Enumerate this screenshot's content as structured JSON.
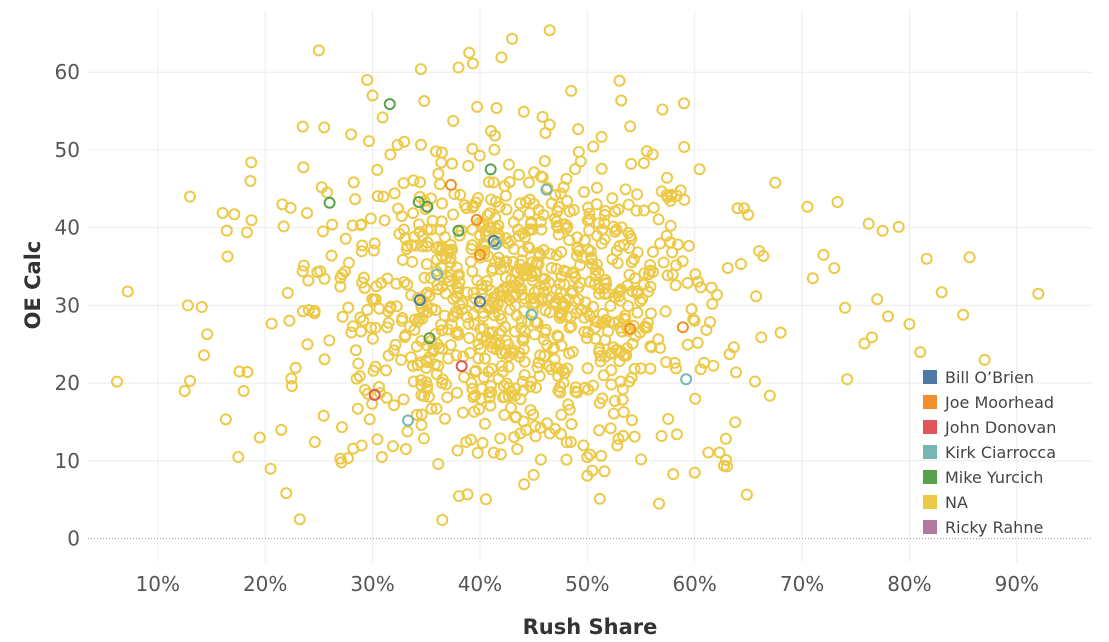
{
  "chart_data": {
    "type": "scatter",
    "title": "",
    "xlabel": "Rush Share",
    "ylabel": "OE Calc",
    "xlim": [
      0.035,
      0.97
    ],
    "ylim": [
      -3,
      68
    ],
    "xticks": [
      0.1,
      0.2,
      0.3,
      0.4,
      0.5,
      0.6,
      0.7,
      0.8,
      0.9
    ],
    "xtick_labels": [
      "10%",
      "20%",
      "30%",
      "40%",
      "50%",
      "60%",
      "70%",
      "80%",
      "90%"
    ],
    "yticks": [
      0,
      10,
      20,
      30,
      40,
      50,
      60
    ],
    "ytick_labels": [
      "0",
      "10",
      "20",
      "30",
      "40",
      "50",
      "60"
    ],
    "grid": true,
    "legend_position": "bottom-right",
    "marker": "hollow-circle",
    "series": [
      {
        "name": "Bill O’Brien",
        "color": "#4e79a7",
        "x": [
          0.344,
          0.4,
          0.413
        ],
        "y": [
          30.7,
          30.5,
          38.3
        ]
      },
      {
        "name": "Joe Moorhead",
        "color": "#f28e2b",
        "x": [
          0.373,
          0.397,
          0.4,
          0.54,
          0.589
        ],
        "y": [
          45.5,
          41.0,
          36.5,
          27.0,
          27.2
        ]
      },
      {
        "name": "John Donovan",
        "color": "#e15759",
        "x": [
          0.302,
          0.383
        ],
        "y": [
          18.5,
          22.2
        ]
      },
      {
        "name": "Kirk Ciarrocca",
        "color": "#76b7b2",
        "x": [
          0.462,
          0.415,
          0.36,
          0.448,
          0.333,
          0.592
        ],
        "y": [
          44.9,
          37.9,
          34.0,
          28.8,
          15.2,
          20.5
        ]
      },
      {
        "name": "Mike Yurcich",
        "color": "#59a14f",
        "x": [
          0.316,
          0.26,
          0.343,
          0.351,
          0.41,
          0.38,
          0.353
        ],
        "y": [
          55.9,
          43.2,
          43.3,
          42.7,
          47.5,
          39.6,
          25.8
        ]
      },
      {
        "name": "NA",
        "color": "#edc948",
        "n": 1050,
        "x": [
          0.062,
          0.072,
          0.13,
          0.128,
          0.141,
          0.146,
          0.143,
          0.125,
          0.13,
          0.165,
          0.175,
          0.183,
          0.187,
          0.216,
          0.25,
          0.255,
          0.28,
          0.295,
          0.3,
          0.31,
          0.345,
          0.38,
          0.39,
          0.42,
          0.43,
          0.465,
          0.485,
          0.53,
          0.57,
          0.59,
          0.675,
          0.705,
          0.733,
          0.762,
          0.775,
          0.79,
          0.816,
          0.856,
          0.92,
          0.85,
          0.87,
          0.742,
          0.765,
          0.646,
          0.662,
          0.758,
          0.67,
          0.235,
          0.205,
          0.215,
          0.195,
          0.18,
          0.176,
          0.27,
          0.6,
          0.63,
          0.365,
          0.45,
          0.5,
          0.55,
          0.58,
          0.68,
          0.71,
          0.72,
          0.73,
          0.74,
          0.77,
          0.78,
          0.8,
          0.81,
          0.83,
          0.64,
          0.66
        ],
        "y": [
          20.2,
          31.8,
          44.0,
          30.0,
          29.8,
          26.3,
          23.6,
          19.0,
          20.3,
          36.3,
          10.5,
          39.4,
          48.4,
          43.0,
          62.8,
          52.9,
          52.0,
          59.0,
          57.0,
          44.0,
          60.4,
          60.6,
          62.5,
          61.9,
          64.3,
          65.4,
          57.6,
          58.9,
          55.2,
          56.0,
          45.8,
          42.7,
          43.3,
          40.5,
          39.6,
          40.1,
          36.0,
          36.2,
          31.5,
          28.8,
          23.0,
          20.5,
          25.9,
          42.5,
          25.9,
          25.1,
          18.4,
          53.0,
          9.0,
          14.0,
          13.0,
          19.0,
          21.5,
          10.3,
          8.5,
          9.3,
          2.4,
          8.2,
          8.1,
          10.2,
          8.3,
          26.5,
          33.5,
          36.5,
          34.8,
          29.7,
          30.8,
          28.6,
          27.6,
          24.0,
          31.7,
          42.5,
          37.0
        ]
      },
      {
        "name": "Ricky Rahne",
        "color": "#b07aa1",
        "x": [],
        "y": []
      }
    ]
  }
}
